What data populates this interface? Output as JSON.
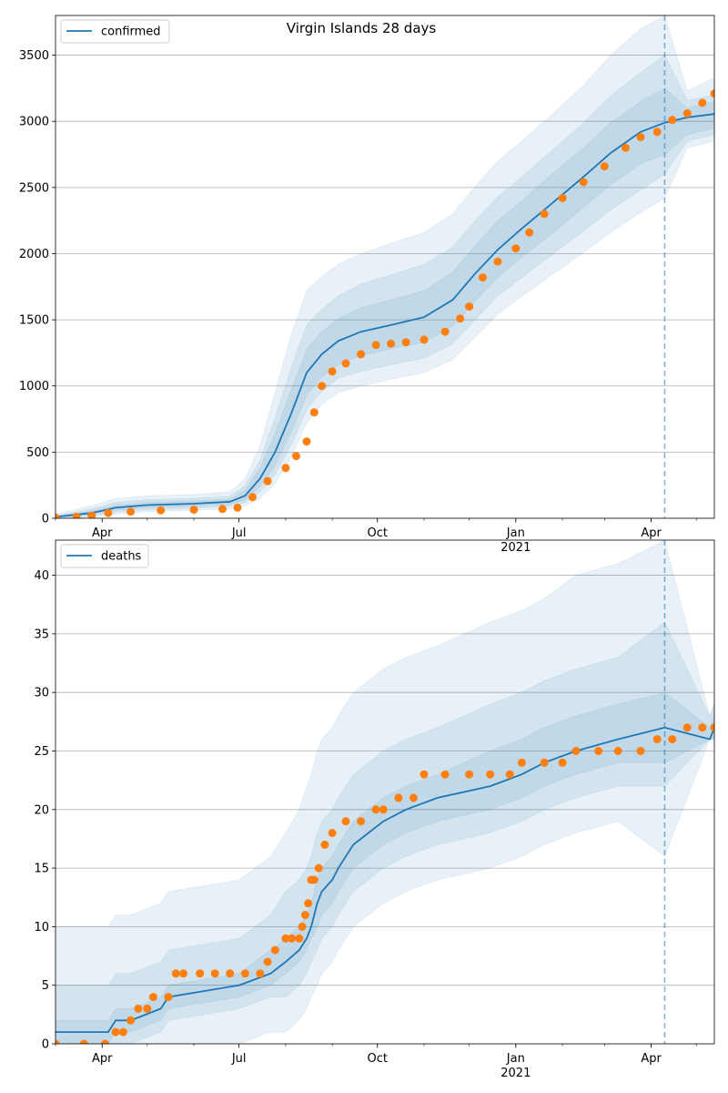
{
  "figure": {
    "title": "Virgin Islands 28 days",
    "colors": {
      "model": "#1f77b4",
      "observed": "#ff7f0e",
      "band": "#1f77b4",
      "grid": "#b0b0b0",
      "vline": "#1f77b4"
    }
  },
  "chart_data": [
    {
      "type": "line",
      "id": "confirmed",
      "title": "Virgin Islands 28 days",
      "legend": {
        "label": "confirmed",
        "placement": "top-left"
      },
      "xlim": [
        "2020-03-01",
        "2021-05-13"
      ],
      "ylim": [
        0,
        3800
      ],
      "yticks": [
        0,
        500,
        1000,
        1500,
        2000,
        2500,
        3000,
        3500
      ],
      "xticks": [
        {
          "date": "2020-04-01",
          "label": "Apr",
          "sublabel": ""
        },
        {
          "date": "2020-07-01",
          "label": "Jul",
          "sublabel": ""
        },
        {
          "date": "2020-10-01",
          "label": "Oct",
          "sublabel": ""
        },
        {
          "date": "2021-01-01",
          "label": "Jan",
          "sublabel": "2021"
        },
        {
          "date": "2021-04-01",
          "label": "Apr",
          "sublabel": ""
        }
      ],
      "grid": "horizontal",
      "forecast_start": "2021-04-10",
      "model": {
        "x": [
          "2020-03-01",
          "2020-03-25",
          "2020-04-10",
          "2020-05-01",
          "2020-06-01",
          "2020-06-25",
          "2020-07-05",
          "2020-07-15",
          "2020-07-25",
          "2020-08-05",
          "2020-08-15",
          "2020-08-25",
          "2020-09-05",
          "2020-09-20",
          "2020-10-10",
          "2020-11-01",
          "2020-11-20",
          "2020-12-05",
          "2020-12-20",
          "2021-01-05",
          "2021-01-25",
          "2021-02-15",
          "2021-03-05",
          "2021-03-25",
          "2021-04-10",
          "2021-04-25",
          "2021-05-13"
        ],
        "y": [
          10,
          40,
          80,
          100,
          110,
          125,
          170,
          300,
          500,
          800,
          1100,
          1240,
          1340,
          1410,
          1460,
          1520,
          1650,
          1850,
          2030,
          2190,
          2380,
          2580,
          2760,
          2920,
          2990,
          3030,
          3055
        ],
        "band_inner": [
          [
            5,
            15
          ],
          [
            30,
            55
          ],
          [
            60,
            100
          ],
          [
            80,
            120
          ],
          [
            90,
            130
          ],
          [
            105,
            145
          ],
          [
            140,
            210
          ],
          [
            240,
            380
          ],
          [
            400,
            640
          ],
          [
            660,
            980
          ],
          [
            930,
            1280
          ],
          [
            1070,
            1410
          ],
          [
            1160,
            1510
          ],
          [
            1230,
            1590
          ],
          [
            1280,
            1650
          ],
          [
            1330,
            1720
          ],
          [
            1450,
            1860
          ],
          [
            1640,
            2060
          ],
          [
            1820,
            2250
          ],
          [
            1970,
            2400
          ],
          [
            2150,
            2600
          ],
          [
            2350,
            2800
          ],
          [
            2520,
            2990
          ],
          [
            2680,
            3150
          ],
          [
            2750,
            3250
          ],
          [
            2900,
            3100
          ],
          [
            2950,
            3150
          ]
        ],
        "band_mid": [
          [
            2,
            20
          ],
          [
            20,
            70
          ],
          [
            45,
            120
          ],
          [
            65,
            140
          ],
          [
            75,
            150
          ],
          [
            90,
            165
          ],
          [
            120,
            245
          ],
          [
            200,
            440
          ],
          [
            330,
            760
          ],
          [
            560,
            1150
          ],
          [
            820,
            1460
          ],
          [
            960,
            1580
          ],
          [
            1060,
            1680
          ],
          [
            1110,
            1770
          ],
          [
            1160,
            1840
          ],
          [
            1210,
            1920
          ],
          [
            1320,
            2050
          ],
          [
            1500,
            2250
          ],
          [
            1680,
            2430
          ],
          [
            1820,
            2580
          ],
          [
            1990,
            2780
          ],
          [
            2170,
            2990
          ],
          [
            2330,
            3190
          ],
          [
            2480,
            3370
          ],
          [
            2600,
            3500
          ],
          [
            2850,
            3160
          ],
          [
            2900,
            3200
          ]
        ],
        "band_outer": [
          [
            0,
            30
          ],
          [
            10,
            95
          ],
          [
            30,
            150
          ],
          [
            50,
            170
          ],
          [
            60,
            180
          ],
          [
            70,
            200
          ],
          [
            90,
            300
          ],
          [
            150,
            550
          ],
          [
            260,
            950
          ],
          [
            470,
            1400
          ],
          [
            720,
            1720
          ],
          [
            860,
            1830
          ],
          [
            950,
            1920
          ],
          [
            1000,
            2000
          ],
          [
            1050,
            2080
          ],
          [
            1100,
            2160
          ],
          [
            1200,
            2300
          ],
          [
            1370,
            2510
          ],
          [
            1540,
            2700
          ],
          [
            1680,
            2850
          ],
          [
            1840,
            3050
          ],
          [
            2010,
            3270
          ],
          [
            2160,
            3500
          ],
          [
            2310,
            3700
          ],
          [
            2420,
            3800
          ],
          [
            2800,
            3230
          ],
          [
            2850,
            3330
          ]
        ]
      },
      "observed": {
        "x": [
          "2020-03-01",
          "2020-03-15",
          "2020-03-25",
          "2020-04-05",
          "2020-04-20",
          "2020-05-10",
          "2020-06-01",
          "2020-06-20",
          "2020-06-30",
          "2020-07-10",
          "2020-07-20",
          "2020-08-01",
          "2020-08-08",
          "2020-08-15",
          "2020-08-20",
          "2020-08-25",
          "2020-09-01",
          "2020-09-10",
          "2020-09-20",
          "2020-09-30",
          "2020-10-10",
          "2020-10-20",
          "2020-11-01",
          "2020-11-15",
          "2020-11-25",
          "2020-12-01",
          "2020-12-10",
          "2020-12-20",
          "2021-01-01",
          "2021-01-10",
          "2021-01-20",
          "2021-02-01",
          "2021-02-15",
          "2021-03-01",
          "2021-03-15",
          "2021-03-25",
          "2021-04-05",
          "2021-04-15",
          "2021-04-25",
          "2021-05-05",
          "2021-05-13"
        ],
        "y": [
          5,
          10,
          20,
          40,
          50,
          60,
          65,
          70,
          80,
          160,
          280,
          380,
          470,
          580,
          800,
          1000,
          1110,
          1170,
          1240,
          1310,
          1320,
          1330,
          1350,
          1410,
          1510,
          1600,
          1820,
          1940,
          2040,
          2160,
          2300,
          2420,
          2540,
          2660,
          2800,
          2880,
          2920,
          3010,
          3060,
          3140,
          3210
        ]
      }
    },
    {
      "type": "line",
      "id": "deaths",
      "title": "",
      "legend": {
        "label": "deaths",
        "placement": "top-left"
      },
      "xlim": [
        "2020-03-01",
        "2021-05-13"
      ],
      "ylim": [
        0,
        43
      ],
      "yticks": [
        0,
        5,
        10,
        15,
        20,
        25,
        30,
        35,
        40
      ],
      "xticks": [
        {
          "date": "2020-04-01",
          "label": "Apr",
          "sublabel": ""
        },
        {
          "date": "2020-07-01",
          "label": "Jul",
          "sublabel": ""
        },
        {
          "date": "2020-10-01",
          "label": "Oct",
          "sublabel": ""
        },
        {
          "date": "2021-01-01",
          "label": "Jan",
          "sublabel": "2021"
        },
        {
          "date": "2021-04-01",
          "label": "Apr",
          "sublabel": ""
        }
      ],
      "grid": "horizontal",
      "forecast_start": "2021-04-10",
      "model": {
        "x": [
          "2020-03-01",
          "2020-04-05",
          "2020-04-10",
          "2020-04-20",
          "2020-05-10",
          "2020-05-15",
          "2020-07-01",
          "2020-07-22",
          "2020-08-01",
          "2020-08-10",
          "2020-08-15",
          "2020-08-18",
          "2020-08-22",
          "2020-08-25",
          "2020-09-01",
          "2020-09-05",
          "2020-09-10",
          "2020-09-15",
          "2020-09-25",
          "2020-10-05",
          "2020-10-20",
          "2020-11-10",
          "2020-12-15",
          "2021-01-05",
          "2021-01-20",
          "2021-02-10",
          "2021-03-10",
          "2021-04-10",
          "2021-05-10",
          "2021-05-13"
        ],
        "y": [
          1,
          1,
          2,
          2,
          3,
          4,
          5,
          6,
          7,
          8,
          9,
          10,
          12,
          13,
          14,
          15,
          16,
          17,
          18,
          19,
          20,
          21,
          22,
          23,
          24,
          25,
          26,
          27,
          26,
          27
        ],
        "band_inner": [
          [
            0,
            2
          ],
          [
            0,
            2
          ],
          [
            1,
            3
          ],
          [
            1,
            3
          ],
          [
            2,
            4
          ],
          [
            3,
            5
          ],
          [
            4,
            6
          ],
          [
            5,
            8
          ],
          [
            6,
            9
          ],
          [
            7,
            10
          ],
          [
            8,
            11
          ],
          [
            9,
            12
          ],
          [
            10,
            14
          ],
          [
            11,
            15
          ],
          [
            12,
            16
          ],
          [
            13,
            17
          ],
          [
            14,
            18
          ],
          [
            15,
            19
          ],
          [
            16,
            20
          ],
          [
            17,
            21
          ],
          [
            18,
            22
          ],
          [
            19,
            23
          ],
          [
            20,
            25
          ],
          [
            21,
            26
          ],
          [
            22,
            27
          ],
          [
            23,
            28
          ],
          [
            24,
            29
          ],
          [
            24,
            30
          ],
          [
            26,
            27
          ],
          [
            26,
            28
          ]
        ],
        "band_mid": [
          [
            0,
            5
          ],
          [
            0,
            5
          ],
          [
            0,
            6
          ],
          [
            0,
            6
          ],
          [
            1,
            7
          ],
          [
            2,
            8
          ],
          [
            3,
            9
          ],
          [
            4,
            11
          ],
          [
            4,
            13
          ],
          [
            5,
            14
          ],
          [
            6,
            15
          ],
          [
            7,
            16
          ],
          [
            8,
            18
          ],
          [
            9,
            19
          ],
          [
            10,
            20
          ],
          [
            11,
            21
          ],
          [
            12,
            22
          ],
          [
            13,
            23
          ],
          [
            14,
            24
          ],
          [
            15,
            25
          ],
          [
            16,
            26
          ],
          [
            17,
            27
          ],
          [
            18,
            29
          ],
          [
            19,
            30
          ],
          [
            20,
            31
          ],
          [
            21,
            32
          ],
          [
            22,
            33
          ],
          [
            22,
            36
          ],
          [
            26,
            28
          ],
          [
            26,
            29
          ]
        ],
        "band_outer": [
          [
            0,
            10
          ],
          [
            0,
            10
          ],
          [
            0,
            11
          ],
          [
            0,
            11
          ],
          [
            0,
            12
          ],
          [
            0,
            13
          ],
          [
            0,
            14
          ],
          [
            1,
            16
          ],
          [
            1,
            18
          ],
          [
            2,
            20
          ],
          [
            3,
            22
          ],
          [
            4,
            23
          ],
          [
            5,
            25
          ],
          [
            6,
            26
          ],
          [
            7,
            27
          ],
          [
            8,
            28
          ],
          [
            9,
            29
          ],
          [
            10,
            30
          ],
          [
            11,
            31
          ],
          [
            12,
            32
          ],
          [
            13,
            33
          ],
          [
            14,
            34
          ],
          [
            15,
            36
          ],
          [
            16,
            37
          ],
          [
            17,
            38
          ],
          [
            18,
            40
          ],
          [
            19,
            41
          ],
          [
            16,
            43
          ],
          [
            26,
            28
          ],
          [
            26,
            29
          ]
        ]
      },
      "observed": {
        "x": [
          "2020-03-01",
          "2020-03-20",
          "2020-04-03",
          "2020-04-10",
          "2020-04-15",
          "2020-04-20",
          "2020-04-25",
          "2020-05-01",
          "2020-05-05",
          "2020-05-15",
          "2020-05-20",
          "2020-05-25",
          "2020-06-05",
          "2020-06-15",
          "2020-06-25",
          "2020-07-05",
          "2020-07-15",
          "2020-07-20",
          "2020-07-25",
          "2020-08-01",
          "2020-08-05",
          "2020-08-10",
          "2020-08-12",
          "2020-08-14",
          "2020-08-16",
          "2020-08-18",
          "2020-08-20",
          "2020-08-23",
          "2020-08-27",
          "2020-09-01",
          "2020-09-10",
          "2020-09-20",
          "2020-09-30",
          "2020-10-05",
          "2020-10-15",
          "2020-10-25",
          "2020-11-01",
          "2020-11-15",
          "2020-12-01",
          "2020-12-15",
          "2020-12-28",
          "2021-01-05",
          "2021-01-20",
          "2021-02-01",
          "2021-02-10",
          "2021-02-25",
          "2021-03-10",
          "2021-03-25",
          "2021-04-05",
          "2021-04-15",
          "2021-04-25",
          "2021-05-05",
          "2021-05-13"
        ],
        "y": [
          0,
          0,
          0,
          1,
          1,
          2,
          3,
          3,
          4,
          4,
          6,
          6,
          6,
          6,
          6,
          6,
          6,
          7,
          8,
          9,
          9,
          9,
          10,
          11,
          12,
          14,
          14,
          15,
          17,
          18,
          19,
          19,
          20,
          20,
          21,
          21,
          23,
          23,
          23,
          23,
          23,
          24,
          24,
          24,
          25,
          25,
          25,
          25,
          26,
          26,
          27,
          27,
          27
        ]
      }
    }
  ]
}
